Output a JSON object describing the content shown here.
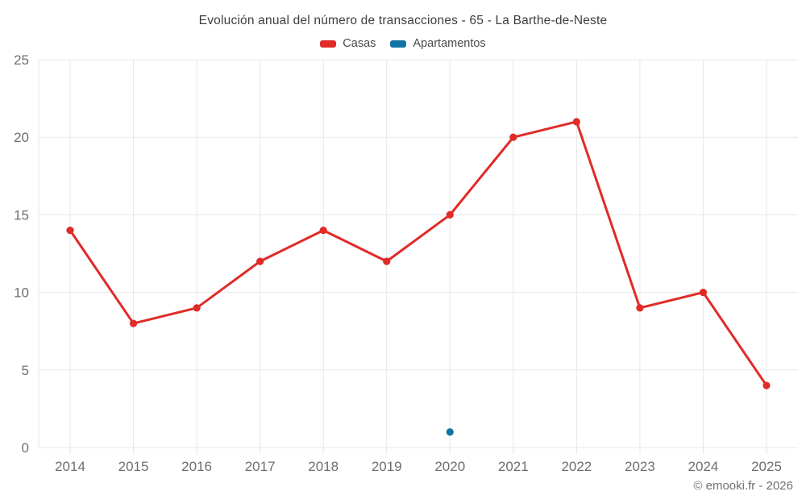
{
  "title": "Evolución anual del número de transacciones - 65 - La Barthe-de-Neste",
  "legend": {
    "items": [
      {
        "label": "Casas",
        "color": "#e02b27"
      },
      {
        "label": "Apartamentos",
        "color": "#1172a5"
      }
    ]
  },
  "footer": {
    "credit": "© emooki.fr - 2026"
  },
  "colors": {
    "grid": "#e7e7e7",
    "axis_text": "#6e6e6e",
    "title_text": "#3e3e3e",
    "legend_text": "#4a4a4a",
    "footer_text": "#717171",
    "background": "#ffffff",
    "casas": "#e02b27",
    "apartamentos": "#1172a5"
  },
  "chart_data": {
    "type": "line",
    "title": "Evolución anual del número de transacciones - 65 - La Barthe-de-Neste",
    "categories": [
      2014,
      2015,
      2016,
      2017,
      2018,
      2019,
      2020,
      2021,
      2022,
      2023,
      2024,
      2025
    ],
    "series": [
      {
        "name": "Casas",
        "color": "#e02b27",
        "values": [
          14,
          8,
          9,
          12,
          14,
          12,
          15,
          20,
          21,
          9,
          10,
          4
        ]
      },
      {
        "name": "Apartamentos",
        "color": "#1172a5",
        "values": [
          null,
          null,
          null,
          null,
          null,
          null,
          1,
          null,
          null,
          null,
          null,
          null
        ]
      }
    ],
    "xlabel": "",
    "ylabel": "",
    "ylim": [
      0,
      25
    ],
    "y_ticks": [
      0,
      5,
      10,
      15,
      20,
      25
    ],
    "grid": true,
    "legend_position": "top",
    "annotations": [
      "© emooki.fr - 2026"
    ]
  }
}
